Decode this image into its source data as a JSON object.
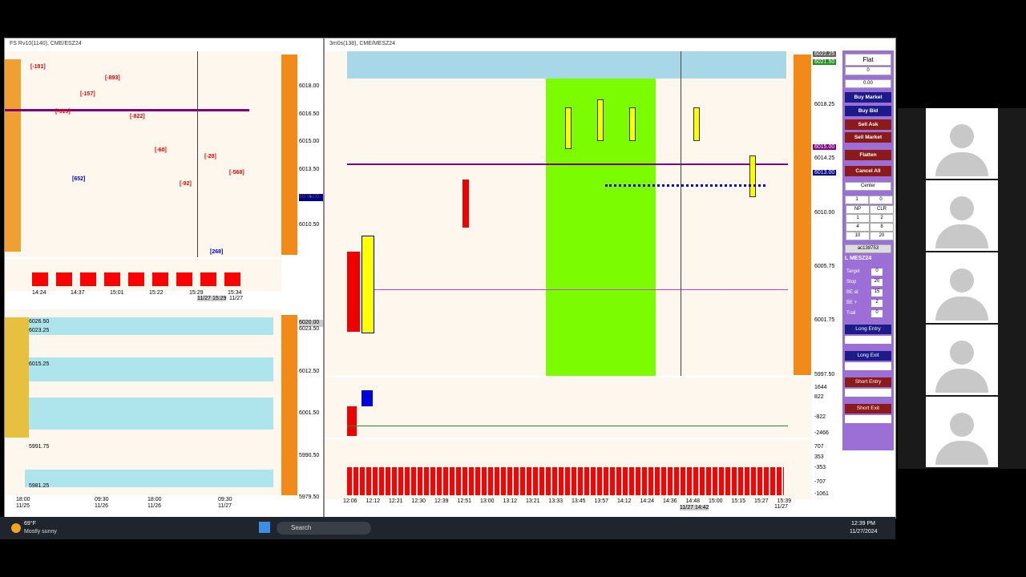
{
  "left_window": {
    "title": "FS Rv10(1140), CME/ESZ24",
    "price_axis": [
      "6018.00",
      "6016.50",
      "6015.00",
      "6013.50",
      "6012.00",
      "6010.50"
    ],
    "current_price": "6013.00",
    "deltas": [
      "[-181]",
      "[-519]",
      "[-157]",
      "[-893]",
      "[-822]",
      "[-60]",
      "[-92]",
      "[-20]",
      "[-568]"
    ],
    "positive_deltas": [
      "[652]",
      "[268]"
    ],
    "times": [
      "14:24",
      "14:37",
      "15:01",
      "15:22",
      "15:29",
      "15:34"
    ],
    "cursor_time": "11/27 15:29",
    "date": "11/27",
    "lower_axis": [
      "6023.50",
      "6012.50",
      "6001.50",
      "5990.50",
      "5979.50"
    ],
    "lower_current": "6020.00",
    "profile_prices": [
      "6026.50",
      "6023.25",
      "6015.25",
      "5991.75",
      "5981.25"
    ],
    "lower_times": [
      {
        "time": "18:00",
        "date": "11/25"
      },
      {
        "time": "09:30",
        "date": "11/26"
      },
      {
        "time": "18:00",
        "date": "11/26"
      },
      {
        "time": "09:30",
        "date": "11/27"
      }
    ]
  },
  "right_window": {
    "title": "3m0s(138), CME/MESZ24",
    "price_axis": [
      "6018.25",
      "6014.25",
      "6010.00",
      "6005.75",
      "6001.75",
      "5997.50"
    ],
    "highlights": [
      "6022.25",
      "6021.50",
      "6015.00",
      "6013.00"
    ],
    "times": [
      "12:06",
      "12:12",
      "12:21",
      "12:30",
      "12:39",
      "12:51",
      "13:00",
      "13:12",
      "13:21",
      "13:33",
      "13:45",
      "13:57",
      "14:12",
      "14:24",
      "14:36",
      "14:48",
      "15:00",
      "15:15",
      "15:27",
      "15:39"
    ],
    "cursor_time": "11/27 14:42",
    "date": "11/27",
    "indicator1_axis": [
      "1644",
      "822",
      "-822",
      "-2466"
    ],
    "indicator2_axis": [
      "707",
      "353",
      "-353",
      "-707",
      "-1061"
    ]
  },
  "order_panel": {
    "status": "Flat",
    "position": "0",
    "pnl": "0.00",
    "buttons": [
      "Buy Market",
      "Buy Bid",
      "Sell Ask",
      "Sell Market",
      "Flatten",
      "Cancel All"
    ],
    "center": "Center",
    "qty": "1",
    "qty_right": "0",
    "grid": [
      "NP",
      "CLR",
      "1",
      "2",
      "4",
      "8",
      "10",
      "20"
    ],
    "account": "ac138753",
    "symbol": "L MESZ24",
    "fields": [
      {
        "label": "Target",
        "value": "0"
      },
      {
        "label": "Stop",
        "value": "20"
      },
      {
        "label": "BE at",
        "value": "15"
      },
      {
        "label": "BE +",
        "value": "2"
      },
      {
        "label": "Trail",
        "value": "0"
      }
    ],
    "entries": [
      "Long Entry",
      "Long Exit",
      "Short Entry",
      "Short Exit"
    ]
  },
  "taskbar": {
    "temperature": "69°F",
    "weather": "Mostly sunny",
    "search": "Search",
    "time": "12:39 PM",
    "date": "11/27/2024"
  }
}
